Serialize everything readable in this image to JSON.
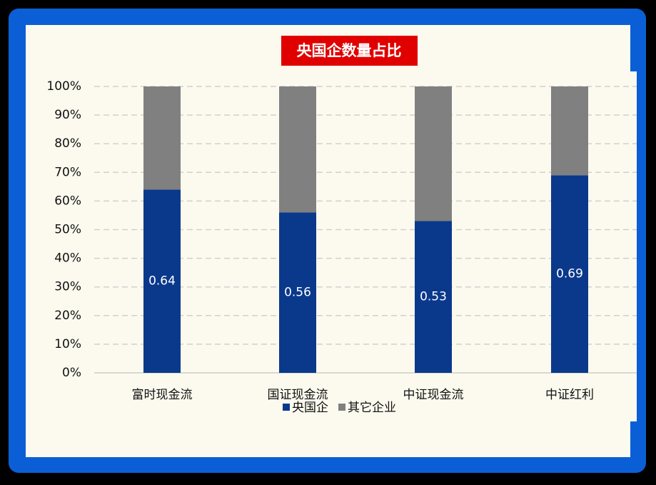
{
  "chart_data": {
    "type": "stacked_bar",
    "title": "央国企数量占比",
    "categories": [
      "富时现金流",
      "国证现金流",
      "中证现金流",
      "中证红利"
    ],
    "series": [
      {
        "name": "央国企",
        "color": "#0a398c",
        "values": [
          64,
          56,
          53,
          69
        ],
        "value_labels": [
          "0.64",
          "0.56",
          "0.53",
          "0.69"
        ]
      },
      {
        "name": "其它企业",
        "color": "#808080",
        "values": [
          36,
          44,
          47,
          31
        ]
      }
    ],
    "ylim": [
      0,
      100
    ],
    "yticks": [
      {
        "value": 0,
        "label": "0%"
      },
      {
        "value": 10,
        "label": "10%"
      },
      {
        "value": 20,
        "label": "20%"
      },
      {
        "value": 30,
        "label": "30%"
      },
      {
        "value": 40,
        "label": "40%"
      },
      {
        "value": 50,
        "label": "50%"
      },
      {
        "value": 60,
        "label": "60%"
      },
      {
        "value": 70,
        "label": "70%"
      },
      {
        "value": 80,
        "label": "80%"
      },
      {
        "value": 90,
        "label": "90%"
      },
      {
        "value": 100,
        "label": "100%"
      }
    ],
    "grid": true,
    "legend": "bottom"
  }
}
